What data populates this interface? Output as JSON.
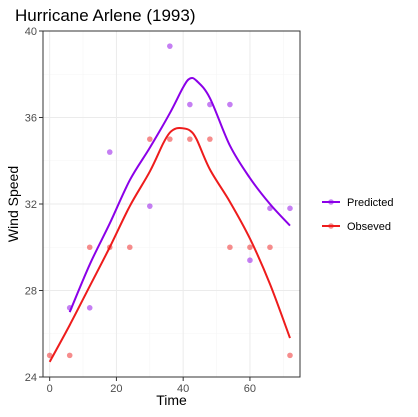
{
  "chart_data": {
    "type": "scatter",
    "title": "Hurricane Arlene (1993)",
    "xlabel": "Time",
    "ylabel": "Wind Speed",
    "xlim": [
      -2,
      75
    ],
    "ylim": [
      24,
      40
    ],
    "xticks": [
      0,
      20,
      40,
      60
    ],
    "yticks": [
      24,
      28,
      32,
      36,
      40
    ],
    "grid": true,
    "legend_position": "right",
    "series": [
      {
        "name": "Predicted",
        "color": "#8b00e8",
        "points": {
          "x": [
            6,
            12,
            18,
            30,
            36,
            42,
            48,
            54,
            60,
            66,
            72
          ],
          "y": [
            27.2,
            27.2,
            34.4,
            31.9,
            39.3,
            36.6,
            36.6,
            36.6,
            29.4,
            31.8,
            31.8
          ]
        },
        "smooth": {
          "x": [
            6,
            12,
            18,
            24,
            30,
            36,
            40,
            42,
            44,
            48,
            54,
            60,
            66,
            72
          ],
          "y": [
            27.0,
            29.2,
            31.1,
            33.1,
            34.6,
            36.2,
            37.4,
            37.8,
            37.7,
            36.9,
            34.7,
            33.2,
            32.0,
            31.0
          ]
        }
      },
      {
        "name": "Obseved",
        "color": "#ee1c1c",
        "points": {
          "x": [
            0,
            6,
            12,
            18,
            24,
            30,
            36,
            42,
            48,
            54,
            60,
            66,
            72
          ],
          "y": [
            25,
            25,
            30,
            30,
            30,
            35,
            35,
            35,
            35,
            30,
            30,
            30,
            25
          ]
        },
        "smooth": {
          "x": [
            0,
            6,
            12,
            18,
            24,
            30,
            34,
            36,
            38,
            40,
            42,
            44,
            48,
            54,
            60,
            66,
            72
          ],
          "y": [
            24.7,
            26.4,
            28.2,
            30.0,
            31.9,
            33.5,
            34.8,
            35.3,
            35.5,
            35.5,
            35.4,
            35.0,
            33.6,
            32.1,
            30.4,
            28.3,
            25.8
          ]
        }
      }
    ]
  }
}
